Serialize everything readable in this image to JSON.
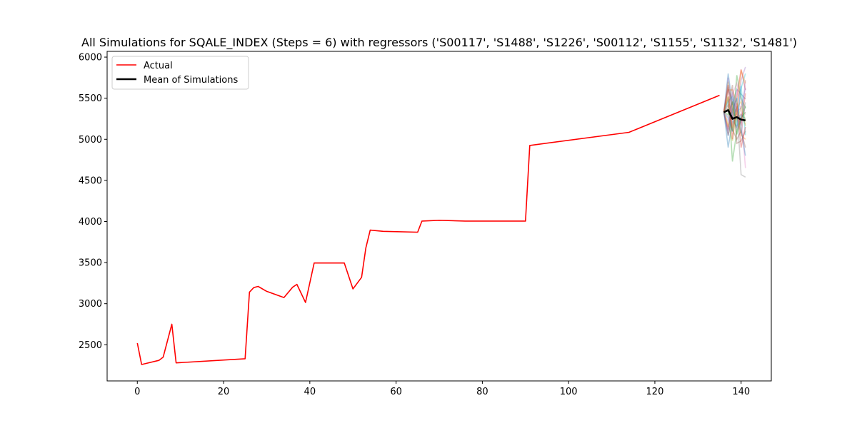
{
  "chart_data": {
    "type": "line",
    "title": "All Simulations for SQALE_INDEX (Steps = 6) with regressors ('S00117', 'S1488', 'S1226', 'S00112', 'S1155', 'S1132', 'S1481')",
    "xlabel": "",
    "ylabel": "",
    "xlim": [
      -7,
      147
    ],
    "ylim": [
      2060,
      6070
    ],
    "xticks": [
      0,
      20,
      40,
      60,
      80,
      100,
      120,
      140
    ],
    "yticks": [
      2500,
      3000,
      3500,
      4000,
      4500,
      5000,
      5500,
      6000
    ],
    "grid": false,
    "legend": {
      "placement": "upper-left",
      "entries": [
        {
          "label": "Actual",
          "color": "#ff0000"
        },
        {
          "label": "Mean of Simulations",
          "color": "#000000"
        }
      ]
    },
    "actual": {
      "name": "Actual",
      "color": "#ff0000",
      "x": [
        0,
        1,
        5,
        6,
        8,
        9,
        25,
        26,
        27,
        28,
        30,
        34,
        36,
        37,
        39,
        41,
        48,
        50,
        52,
        53,
        54,
        57,
        65,
        66,
        70,
        76,
        90,
        91,
        114,
        135
      ],
      "y": [
        2520,
        2260,
        2310,
        2350,
        2750,
        2280,
        2330,
        3140,
        3195,
        3210,
        3150,
        3075,
        3200,
        3235,
        3015,
        3495,
        3495,
        3180,
        3320,
        3680,
        3895,
        3880,
        3870,
        4005,
        4015,
        4005,
        4005,
        4925,
        5085,
        5535
      ]
    },
    "mean_of_simulations": {
      "name": "Mean of Simulations",
      "color": "#000000",
      "x": [
        136,
        137,
        138,
        139,
        140,
        141
      ],
      "y": [
        5330,
        5355,
        5250,
        5270,
        5240,
        5230
      ]
    },
    "simulations": {
      "x": [
        136,
        137,
        138,
        139,
        140,
        141
      ],
      "colors": [
        "#1f77b4",
        "#ff7f0e",
        "#2ca02c",
        "#d62728",
        "#9467bd",
        "#8c564b",
        "#e377c2",
        "#7f7f7f",
        "#bcbd22",
        "#17becf"
      ],
      "series": [
        [
          5330,
          5800,
          5420,
          5610,
          5550,
          5490
        ],
        [
          5330,
          5150,
          5380,
          5240,
          5310,
          5180
        ],
        [
          5330,
          5520,
          4730,
          5100,
          5250,
          5400
        ],
        [
          5330,
          5050,
          5300,
          5520,
          5850,
          5600
        ],
        [
          5330,
          5600,
          5480,
          5350,
          5200,
          5720
        ],
        [
          5330,
          5420,
          5120,
          5000,
          5100,
          4900
        ],
        [
          5330,
          5220,
          5550,
          5680,
          5470,
          5300
        ],
        [
          5330,
          5480,
          5260,
          5400,
          4570,
          4540
        ],
        [
          5330,
          5700,
          5380,
          5220,
          5400,
          5160
        ],
        [
          5330,
          5260,
          5090,
          5480,
          5620,
          5800
        ],
        [
          5330,
          4900,
          5230,
          5150,
          5300,
          5250
        ],
        [
          5330,
          5600,
          5600,
          5450,
          5050,
          5000
        ],
        [
          5330,
          5360,
          5100,
          5780,
          5500,
          5380
        ],
        [
          5330,
          5120,
          5440,
          5300,
          5180,
          5560
        ],
        [
          5330,
          5750,
          5300,
          5120,
          5720,
          5880
        ],
        [
          5330,
          5380,
          5660,
          4950,
          4980,
          5100
        ],
        [
          5330,
          5280,
          5180,
          5600,
          5330,
          4650
        ],
        [
          5330,
          5640,
          5330,
          5260,
          5080,
          5450
        ],
        [
          5330,
          5180,
          4980,
          5380,
          5460,
          5220
        ],
        [
          5330,
          5460,
          5520,
          5160,
          5650,
          5050
        ],
        [
          5330,
          5040,
          5360,
          5500,
          5120,
          4800
        ],
        [
          5330,
          5520,
          5140,
          5320,
          5840,
          5680
        ],
        [
          5330,
          5300,
          5460,
          5060,
          5260,
          5330
        ],
        [
          5330,
          5660,
          5000,
          5440,
          4900,
          5150
        ],
        [
          5330,
          5100,
          5580,
          5340,
          5380,
          5620
        ]
      ]
    }
  }
}
